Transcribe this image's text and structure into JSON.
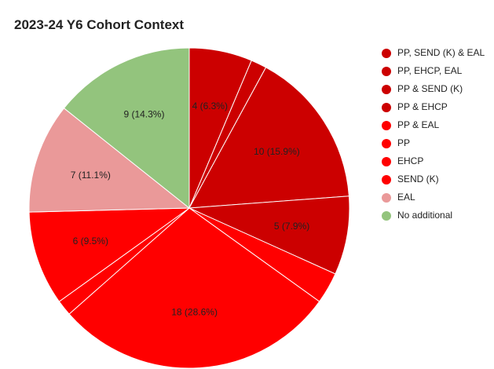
{
  "chart_data": {
    "type": "pie",
    "title": "2023-24 Y6 Cohort Context",
    "legend_position": "right",
    "slices": [
      {
        "label": "PP, SEND (K) & EAL",
        "value": 4,
        "display": "4 (6.3%)",
        "color": "#cc0000"
      },
      {
        "label": "PP, EHCP, EAL",
        "value": 1,
        "display": "",
        "color": "#cc0000"
      },
      {
        "label": "PP & SEND (K)",
        "value": 10,
        "display": "10 (15.9%)",
        "color": "#cc0000"
      },
      {
        "label": "PP & EHCP",
        "value": 5,
        "display": "5 (7.9%)",
        "color": "#cc0000"
      },
      {
        "label": "PP & EAL",
        "value": 2,
        "display": "",
        "color": "#ff0000"
      },
      {
        "label": "PP",
        "value": 18,
        "display": "18 (28.6%)",
        "color": "#ff0000"
      },
      {
        "label": "EHCP",
        "value": 1,
        "display": "",
        "color": "#ff0000"
      },
      {
        "label": "SEND (K)",
        "value": 6,
        "display": "6 (9.5%)",
        "color": "#ff0000"
      },
      {
        "label": "EAL",
        "value": 7,
        "display": "7 (11.1%)",
        "color": "#ea9999"
      },
      {
        "label": "No additional",
        "value": 9,
        "display": "9 (14.3%)",
        "color": "#93c47d"
      }
    ]
  }
}
